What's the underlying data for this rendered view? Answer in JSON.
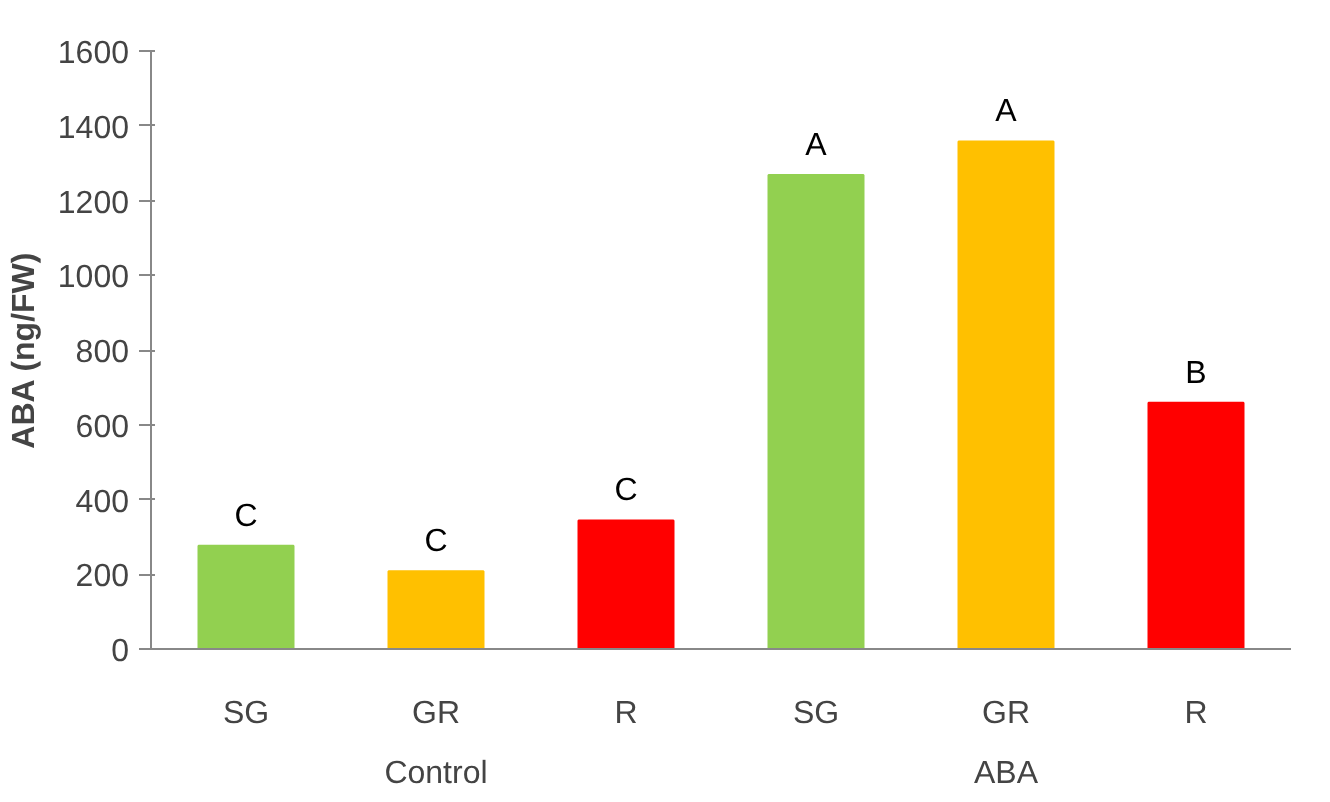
{
  "chart_data": {
    "type": "bar",
    "ylabel": "ABA (ng/FW)",
    "categories": [
      "SG",
      "GR",
      "R",
      "SG",
      "GR",
      "R"
    ],
    "values": [
      276,
      208,
      344,
      1268,
      1358,
      659
    ],
    "colors": [
      "#92d050",
      "#ffc000",
      "#ff0000",
      "#92d050",
      "#ffc000",
      "#ff0000"
    ],
    "value_labels": [
      "C",
      "C",
      "C",
      "A",
      "A",
      "B"
    ],
    "annotations": [
      "Control",
      "ABA"
    ],
    "ylim": [
      0,
      1600
    ],
    "yticks": [
      0,
      200,
      400,
      600,
      800,
      1000,
      1200,
      1400,
      1600
    ],
    "grid": false
  }
}
